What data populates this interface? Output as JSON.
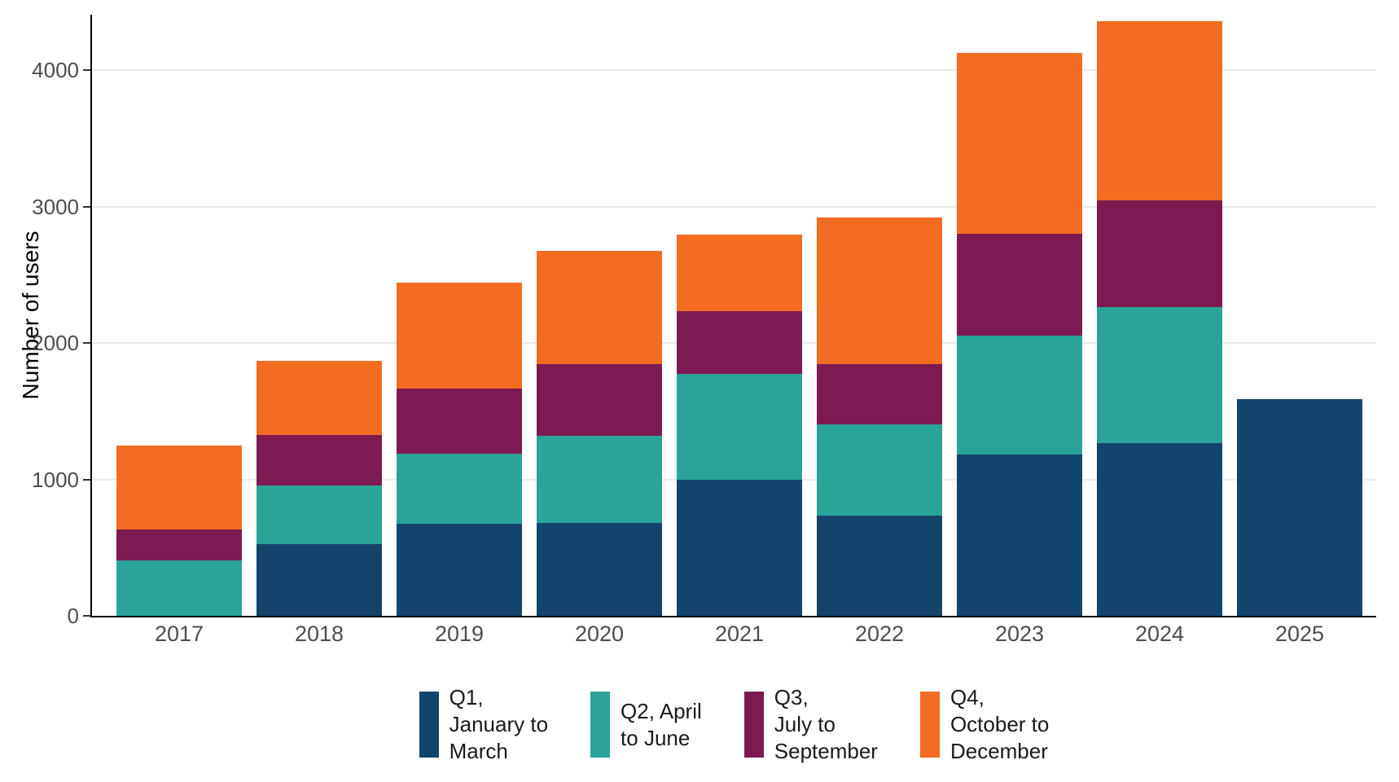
{
  "style": {
    "background": "#ffffff",
    "grid_color": "#ebebeb",
    "axis_color": "#000000",
    "tick_label_color": "#4d4d4d",
    "axis_title_color": "#000000",
    "legend_text_color": "#1a1a1a"
  },
  "chart_data": {
    "type": "bar",
    "stacked": true,
    "orientation": "vertical",
    "title": "",
    "xlabel": "",
    "ylabel": "Number of users",
    "categories": [
      "2017",
      "2018",
      "2019",
      "2020",
      "2021",
      "2022",
      "2023",
      "2024",
      "2025"
    ],
    "series": [
      {
        "name": "Q1, January to March",
        "legend_lines": [
          "Q1,",
          "January to",
          "March"
        ],
        "color": "#13446c",
        "values": [
          0,
          525,
          675,
          680,
          1000,
          735,
          1185,
          1265,
          1590
        ]
      },
      {
        "name": "Q2, April to June",
        "legend_lines": [
          "Q2, April",
          "to June"
        ],
        "color": "#2aa398",
        "values": [
          405,
          430,
          515,
          640,
          775,
          670,
          870,
          1000,
          0
        ]
      },
      {
        "name": "Q3, July to September",
        "legend_lines": [
          "Q3,",
          "July to",
          "September"
        ],
        "color": "#7d1a52",
        "values": [
          225,
          370,
          475,
          525,
          460,
          440,
          745,
          780,
          0
        ]
      },
      {
        "name": "Q4, October to December",
        "legend_lines": [
          "Q4,",
          "October to",
          "December"
        ],
        "color": "#f26c21",
        "values": [
          615,
          545,
          775,
          830,
          560,
          1075,
          1325,
          1315,
          0
        ]
      }
    ],
    "stack_totals": [
      1245,
      1870,
      2440,
      2675,
      2795,
      2920,
      4125,
      4360,
      1590
    ],
    "y_ticks": [
      0,
      1000,
      2000,
      3000,
      4000
    ],
    "ylim": [
      0,
      4406
    ],
    "grid": "horizontal",
    "legend_position": "bottom"
  }
}
